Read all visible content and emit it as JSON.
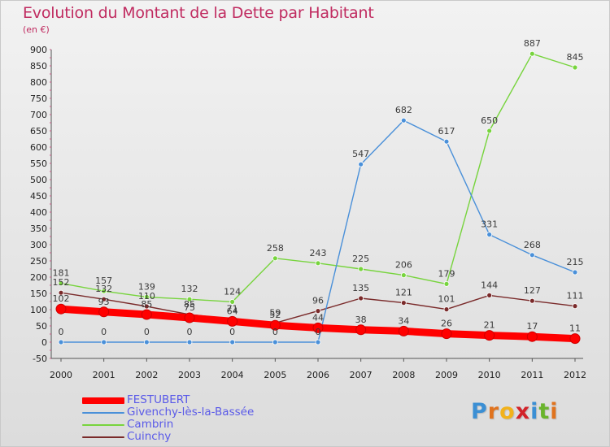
{
  "title": "Evolution du Montant de la Dette par Habitant",
  "unit": "(en €)",
  "logo": {
    "letters": [
      "P",
      "r",
      "o",
      "x",
      "i",
      "t",
      "i"
    ],
    "colors": [
      "#3b8fd4",
      "#e0731e",
      "#f2b21b",
      "#d2232a",
      "#3b8fd4",
      "#6ab42d",
      "#e0731e"
    ]
  },
  "chart_data": {
    "type": "line",
    "x": [
      "2000",
      "2001",
      "2002",
      "2003",
      "2004",
      "2005",
      "2006",
      "2007",
      "2008",
      "2009",
      "2010",
      "2011",
      "2012"
    ],
    "ylim": [
      -50,
      900
    ],
    "yticks": [
      "900",
      "850",
      "800",
      "750",
      "700",
      "650",
      "600",
      "550",
      "500",
      "450",
      "400",
      "350",
      "300",
      "250",
      "200",
      "150",
      "100",
      "50",
      "0",
      "-50"
    ],
    "grid": false,
    "legend_position": "bottom-left",
    "series": [
      {
        "name": "FESTUBERT",
        "color": "#ff0000",
        "values": [
          102,
          93,
          85,
          75,
          64,
          52,
          44,
          38,
          34,
          26,
          21,
          17,
          11
        ],
        "labels": [
          "102",
          "93",
          "85",
          "75",
          "64",
          "52",
          "44",
          "38",
          "34",
          "26",
          "21",
          "17",
          "11"
        ]
      },
      {
        "name": "Givenchy-lès-la-Bassée",
        "color": "#4a90d9",
        "values": [
          0,
          0,
          0,
          0,
          0,
          0,
          0,
          547,
          682,
          617,
          331,
          268,
          215
        ],
        "labels": [
          "0",
          "0",
          "0",
          "0",
          "0",
          "0",
          "0",
          "547",
          "682",
          "617",
          "331",
          "268",
          "215"
        ]
      },
      {
        "name": "Cambrin",
        "color": "#77d43d",
        "values": [
          181,
          157,
          139,
          132,
          124,
          258,
          243,
          225,
          206,
          179,
          650,
          887,
          845
        ],
        "labels": [
          "181",
          "157",
          "139",
          "132",
          "124",
          "258",
          "243",
          "225",
          "206",
          "179",
          "650",
          "887",
          "845"
        ]
      },
      {
        "name": "Cuinchy",
        "color": "#7a2a2a",
        "values": [
          152,
          132,
          110,
          85,
          71,
          59,
          96,
          135,
          121,
          101,
          144,
          127,
          111
        ],
        "labels": [
          "152",
          "132",
          "110",
          "85",
          "71",
          "59",
          "96",
          "135",
          "121",
          "101",
          "144",
          "127",
          "111"
        ]
      }
    ]
  }
}
